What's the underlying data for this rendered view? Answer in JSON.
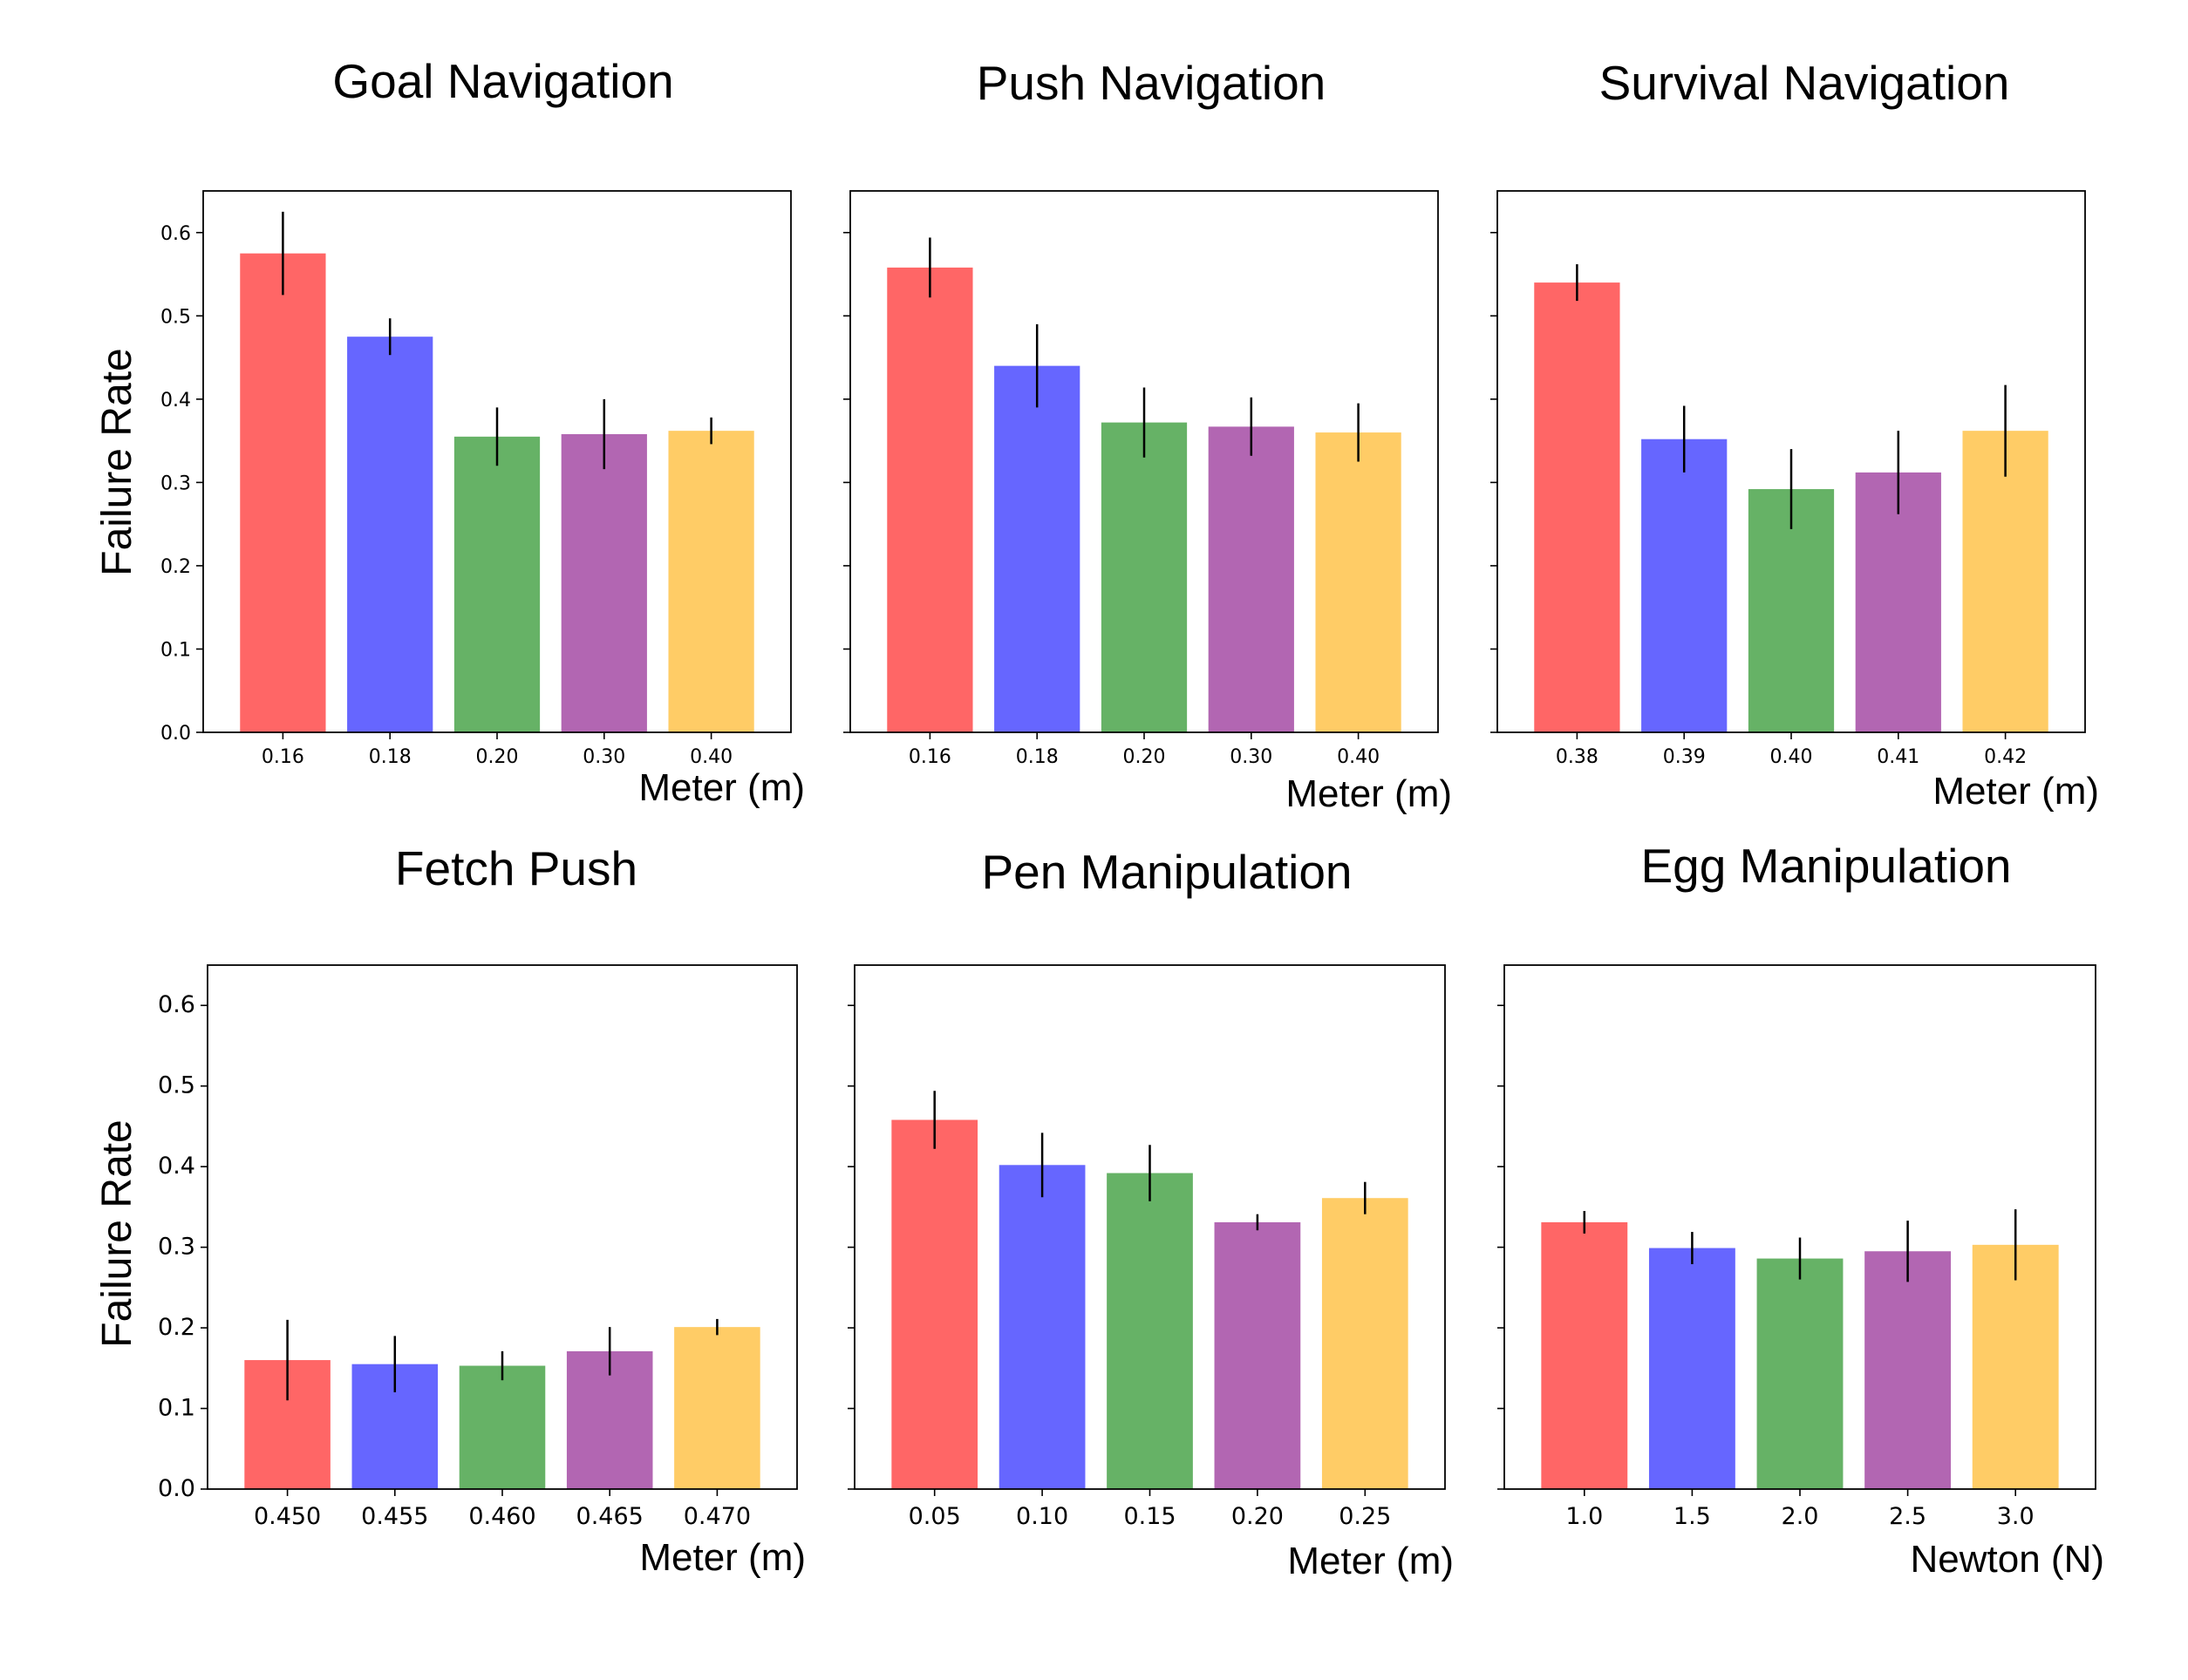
{
  "figure": {
    "ylabel": "Failure Rate",
    "bar_colors": [
      "#ff6666",
      "#6666ff",
      "#66b266",
      "#b266b2",
      "#ffcc66"
    ],
    "ylim": [
      0,
      0.65
    ],
    "yticks": [
      "0.0",
      "0.1",
      "0.2",
      "0.3",
      "0.4",
      "0.5",
      "0.6"
    ]
  },
  "chart_data": [
    {
      "type": "bar",
      "title": "Goal Navigation",
      "xlabel": "Meter (m)",
      "ylabel": "Failure Rate",
      "categories": [
        "0.16",
        "0.18",
        "0.20",
        "0.30",
        "0.40"
      ],
      "values": [
        0.575,
        0.475,
        0.355,
        0.358,
        0.362
      ],
      "errors": [
        0.05,
        0.022,
        0.035,
        0.042,
        0.016
      ],
      "ylim": [
        0,
        0.65
      ]
    },
    {
      "type": "bar",
      "title": "Push Navigation",
      "xlabel": "Meter (m)",
      "ylabel": "",
      "categories": [
        "0.16",
        "0.18",
        "0.20",
        "0.30",
        "0.40"
      ],
      "values": [
        0.558,
        0.44,
        0.372,
        0.367,
        0.36
      ],
      "errors": [
        0.036,
        0.05,
        0.042,
        0.035,
        0.035
      ],
      "ylim": [
        0,
        0.65
      ]
    },
    {
      "type": "bar",
      "title": "Survival Navigation",
      "xlabel": "Meter (m)",
      "ylabel": "",
      "categories": [
        "0.38",
        "0.39",
        "0.40",
        "0.41",
        "0.42"
      ],
      "values": [
        0.54,
        0.352,
        0.292,
        0.312,
        0.362
      ],
      "errors": [
        0.022,
        0.04,
        0.048,
        0.05,
        0.055
      ],
      "ylim": [
        0,
        0.65
      ]
    },
    {
      "type": "bar",
      "title": "Fetch Push",
      "xlabel": "Meter (m)",
      "ylabel": "Failure Rate",
      "categories": [
        "0.450",
        "0.455",
        "0.460",
        "0.465",
        "0.470"
      ],
      "values": [
        0.16,
        0.155,
        0.153,
        0.171,
        0.201
      ],
      "errors": [
        0.05,
        0.035,
        0.018,
        0.03,
        0.01
      ],
      "ylim": [
        0,
        0.65
      ]
    },
    {
      "type": "bar",
      "title": "Pen Manipulation",
      "xlabel": "Meter (m)",
      "ylabel": "",
      "categories": [
        "0.05",
        "0.10",
        "0.15",
        "0.20",
        "0.25"
      ],
      "values": [
        0.458,
        0.402,
        0.392,
        0.331,
        0.361
      ],
      "errors": [
        0.036,
        0.04,
        0.035,
        0.01,
        0.02
      ],
      "ylim": [
        0,
        0.65
      ]
    },
    {
      "type": "bar",
      "title": "Egg Manipulation",
      "xlabel": "Newton (N)",
      "ylabel": "",
      "categories": [
        "1.0",
        "1.5",
        "2.0",
        "2.5",
        "3.0"
      ],
      "values": [
        0.331,
        0.299,
        0.286,
        0.295,
        0.303
      ],
      "errors": [
        0.014,
        0.02,
        0.026,
        0.038,
        0.044
      ],
      "ylim": [
        0,
        0.65
      ]
    }
  ]
}
